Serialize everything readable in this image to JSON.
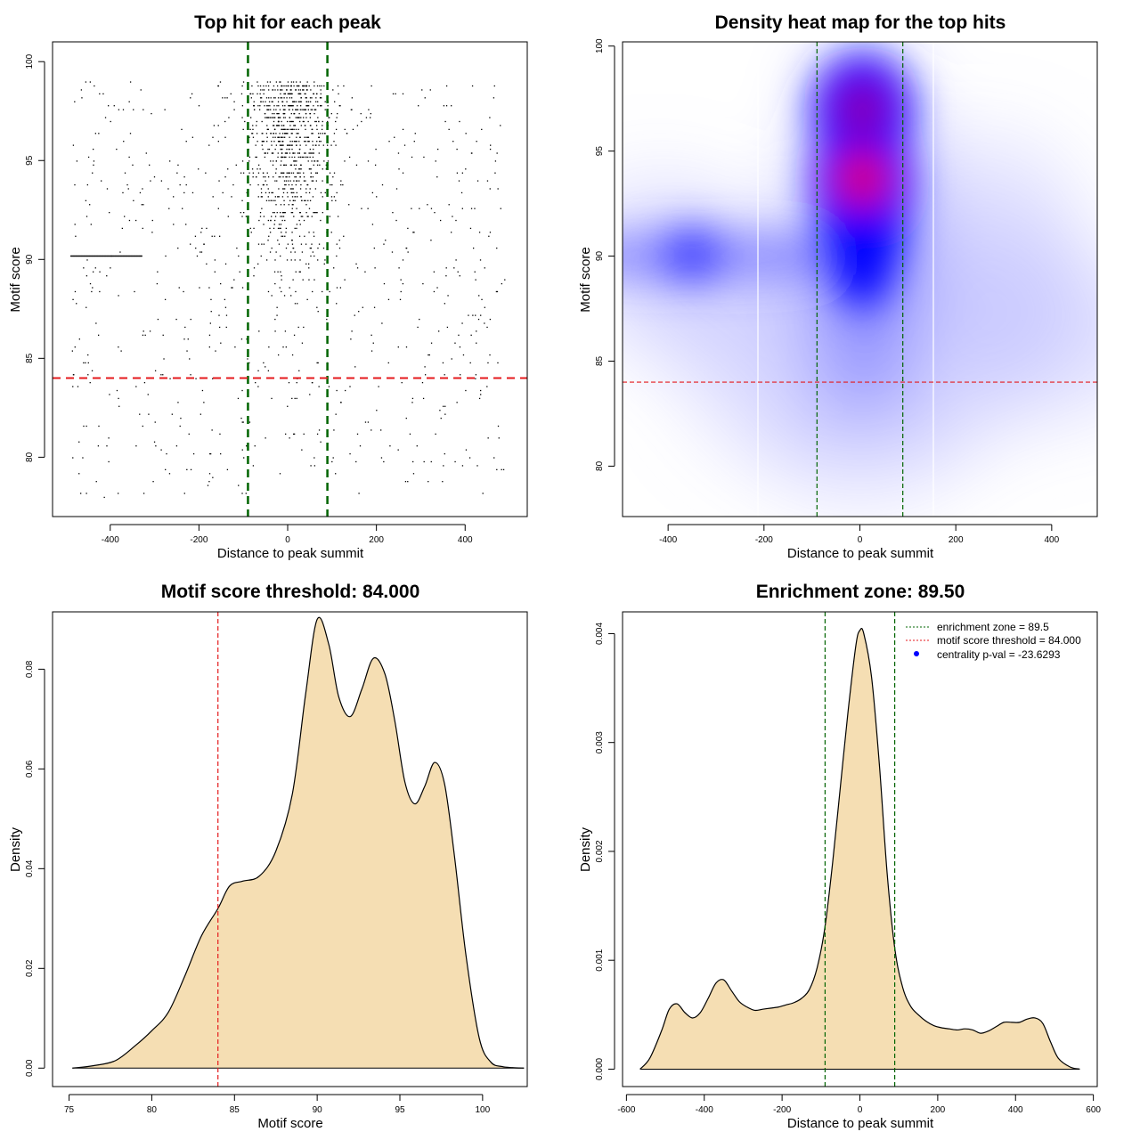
{
  "chart_data": [
    {
      "type": "scatter",
      "title": "Top hit for each peak",
      "xlabel": "Distance to peak summit",
      "ylabel": "Motif score",
      "xlim": [
        -530,
        540
      ],
      "ylim": [
        77,
        101
      ],
      "x_ticks": [
        -400,
        -200,
        0,
        200,
        400
      ],
      "y_ticks": [
        80,
        85,
        90,
        95,
        100
      ],
      "x_tick_labels": [
        "-400",
        "-200",
        "0",
        "200",
        "400"
      ],
      "y_tick_labels": [
        "80",
        "85",
        "90",
        "95",
        "100"
      ],
      "enrichment_zone_lines": [
        -89.5,
        89.5
      ],
      "threshold_line": 84.0,
      "dense_row_y": 90.2,
      "dense_row_x_range": [
        -490,
        -330
      ],
      "point_clusters": [
        {
          "x_mean": 0,
          "x_sd": 50,
          "y_min": 83,
          "y_max": 99,
          "approx_count": 900
        },
        {
          "x_mean": 0,
          "x_sd": 280,
          "y_min": 78,
          "y_max": 99,
          "approx_count": 700
        }
      ],
      "colors": {
        "points": "#000000",
        "zone": "#006400",
        "threshold": "#e41a1c"
      }
    },
    {
      "type": "heatmap",
      "title": "Density heat map for the top hits",
      "xlabel": "Distance to peak summit",
      "ylabel": "Motif score",
      "xlim": [
        -495,
        495
      ],
      "ylim": [
        77.6,
        100.2
      ],
      "x_ticks": [
        -400,
        -200,
        0,
        200,
        400
      ],
      "y_ticks": [
        80,
        85,
        90,
        95,
        100
      ],
      "x_tick_labels": [
        "-400",
        "-200",
        "0",
        "200",
        "400"
      ],
      "y_tick_labels": [
        "80",
        "85",
        "90",
        "95",
        "100"
      ],
      "enrichment_zone_lines": [
        -89.5,
        89.5
      ],
      "threshold_line": 84.0,
      "density_peaks": [
        {
          "x": 5,
          "y": 93.7,
          "intensity": 1.0
        },
        {
          "x": 5,
          "y": 97.0,
          "intensity": 0.85
        },
        {
          "x": -350,
          "y": 90.1,
          "intensity": 0.55
        }
      ],
      "colors": {
        "low": "#ffffff",
        "mid": "#0000ff",
        "high": "#ff0000",
        "zone": "#006400",
        "threshold": "#e41a1c"
      }
    },
    {
      "type": "area",
      "title": "Motif score threshold: 84.000",
      "xlabel": "Motif score",
      "ylabel": "Density",
      "xlim": [
        74,
        102.7
      ],
      "ylim": [
        -0.0037,
        0.0915
      ],
      "x_ticks": [
        75,
        80,
        85,
        90,
        95,
        100
      ],
      "y_ticks": [
        0.0,
        0.02,
        0.04,
        0.06,
        0.08
      ],
      "x_tick_labels": [
        "75",
        "80",
        "85",
        "90",
        "95",
        "100"
      ],
      "y_tick_labels": [
        "0.00",
        "0.02",
        "0.04",
        "0.06",
        "0.08"
      ],
      "threshold_line": 84.0,
      "x": [
        75.2,
        76.5,
        77.8,
        79.0,
        80.0,
        81.0,
        82.0,
        83.0,
        84.0,
        84.7,
        85.5,
        86.5,
        87.5,
        88.5,
        89.3,
        90.0,
        90.7,
        91.3,
        92.0,
        92.7,
        93.4,
        94.1,
        94.7,
        95.3,
        95.9,
        96.5,
        97.1,
        97.7,
        98.3,
        99.0,
        99.8,
        100.5,
        101.2,
        101.8,
        102.5
      ],
      "y": [
        0.0,
        0.0005,
        0.0015,
        0.0045,
        0.0075,
        0.0112,
        0.0185,
        0.0265,
        0.032,
        0.0365,
        0.0375,
        0.0385,
        0.0435,
        0.055,
        0.075,
        0.09,
        0.085,
        0.0745,
        0.0705,
        0.076,
        0.0822,
        0.079,
        0.0695,
        0.0574,
        0.053,
        0.0565,
        0.0613,
        0.057,
        0.0425,
        0.0225,
        0.006,
        0.0012,
        0.0003,
        0.0001,
        0.0
      ],
      "colors": {
        "fill": "#f5deb3",
        "line": "#000000",
        "threshold": "#e41a1c"
      }
    },
    {
      "type": "area",
      "title": "Enrichment zone: 89.50",
      "xlabel": "Distance to peak summit",
      "ylabel": "Density",
      "xlim": [
        -610,
        610
      ],
      "ylim": [
        -0.00016,
        0.0042
      ],
      "x_ticks": [
        -600,
        -400,
        -200,
        0,
        200,
        400,
        600
      ],
      "y_ticks": [
        0.0,
        0.001,
        0.002,
        0.003,
        0.004
      ],
      "x_tick_labels": [
        "-600",
        "-400",
        "-200",
        "0",
        "200",
        "400",
        "600"
      ],
      "y_tick_labels": [
        "0.000",
        "0.001",
        "0.002",
        "0.003",
        "0.004"
      ],
      "enrichment_zone_lines": [
        -89.5,
        89.5
      ],
      "x": [
        -565,
        -540,
        -510,
        -490,
        -470,
        -450,
        -430,
        -410,
        -390,
        -370,
        -350,
        -330,
        -310,
        -290,
        -270,
        -250,
        -230,
        -210,
        -190,
        -170,
        -150,
        -130,
        -110,
        -90,
        -70,
        -50,
        -30,
        -10,
        0,
        10,
        30,
        50,
        70,
        90,
        110,
        130,
        150,
        170,
        190,
        210,
        230,
        250,
        270,
        290,
        310,
        330,
        350,
        370,
        390,
        410,
        430,
        450,
        470,
        490,
        510,
        540,
        565
      ],
      "y": [
        0.0,
        0.0001,
        0.00035,
        0.00055,
        0.0006,
        0.00052,
        0.00047,
        0.00052,
        0.00065,
        0.00079,
        0.00082,
        0.00072,
        0.00062,
        0.00057,
        0.00054,
        0.00055,
        0.00056,
        0.00057,
        0.00059,
        0.00061,
        0.00065,
        0.00073,
        0.00093,
        0.0013,
        0.0019,
        0.0026,
        0.0033,
        0.0039,
        0.00403,
        0.004,
        0.0036,
        0.0028,
        0.0018,
        0.0011,
        0.00075,
        0.00058,
        0.0005,
        0.00044,
        0.0004,
        0.00038,
        0.00037,
        0.00036,
        0.00037,
        0.00036,
        0.00033,
        0.00035,
        0.00039,
        0.00043,
        0.00043,
        0.00043,
        0.00046,
        0.00047,
        0.00042,
        0.00025,
        0.0001,
        2e-05,
        0.0
      ],
      "legend": [
        {
          "label": "enrichment zone = 89.5",
          "style": "line",
          "color": "#006400"
        },
        {
          "label": "motif score threshold = 84.000",
          "style": "line",
          "color": "#e41a1c"
        },
        {
          "label": "centrality p-val = -23.6293",
          "style": "point",
          "color": "#0000ff"
        }
      ],
      "legend_position": "top-right",
      "colors": {
        "fill": "#f5deb3",
        "line": "#000000",
        "zone": "#006400"
      }
    }
  ]
}
